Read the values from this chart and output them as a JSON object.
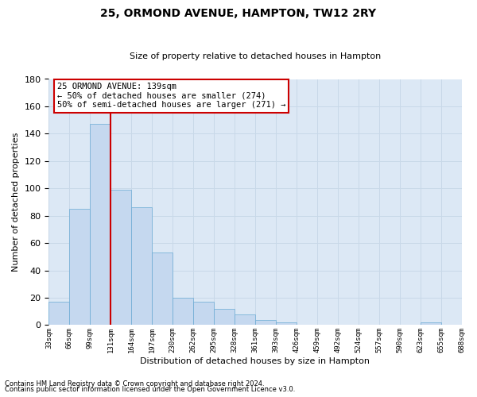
{
  "title1": "25, ORMOND AVENUE, HAMPTON, TW12 2RY",
  "title2": "Size of property relative to detached houses in Hampton",
  "xlabel": "Distribution of detached houses by size in Hampton",
  "ylabel": "Number of detached properties",
  "bar_values": [
    17,
    85,
    147,
    99,
    86,
    53,
    20,
    17,
    12,
    8,
    4,
    2,
    0,
    0,
    0,
    0,
    0,
    0,
    2,
    0
  ],
  "bin_labels": [
    "33sqm",
    "66sqm",
    "99sqm",
    "131sqm",
    "164sqm",
    "197sqm",
    "230sqm",
    "262sqm",
    "295sqm",
    "328sqm",
    "361sqm",
    "393sqm",
    "426sqm",
    "459sqm",
    "492sqm",
    "524sqm",
    "557sqm",
    "590sqm",
    "623sqm",
    "655sqm",
    "688sqm"
  ],
  "bar_color": "#c5d8ef",
  "bar_edge_color": "#6aaad4",
  "grid_color": "#c8d8e8",
  "background_color": "#dce8f5",
  "vline_color": "#cc0000",
  "annotation_text": "25 ORMOND AVENUE: 139sqm\n← 50% of detached houses are smaller (274)\n50% of semi-detached houses are larger (271) →",
  "annotation_box_color": "#ffffff",
  "annotation_box_edge_color": "#cc0000",
  "footnote1": "Contains HM Land Registry data © Crown copyright and database right 2024.",
  "footnote2": "Contains public sector information licensed under the Open Government Licence v3.0.",
  "ylim": [
    0,
    180
  ],
  "yticks": [
    0,
    20,
    40,
    60,
    80,
    100,
    120,
    140,
    160,
    180
  ],
  "vline_pos": 3.0
}
